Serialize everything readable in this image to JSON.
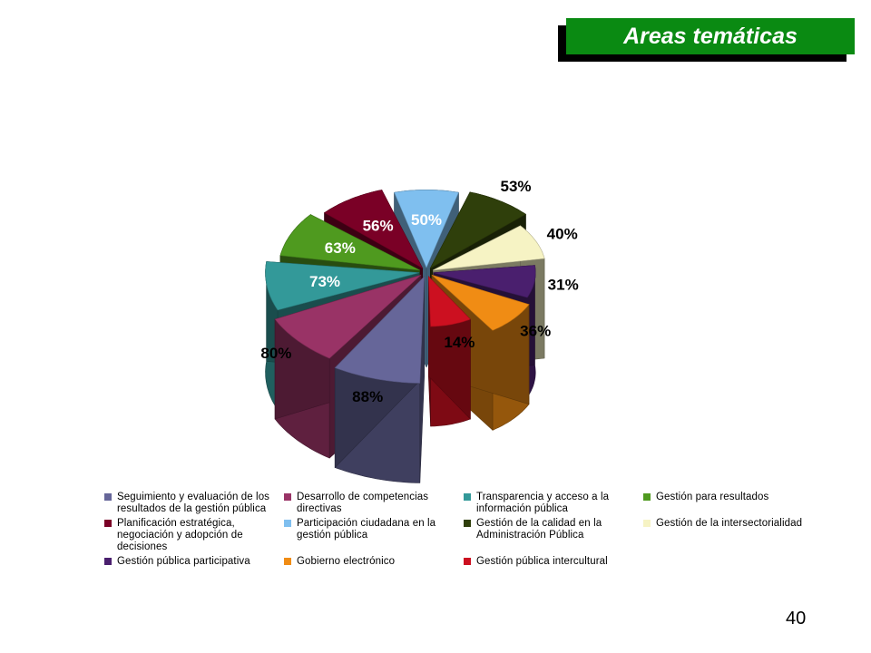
{
  "header": {
    "title": "Areas temáticas"
  },
  "page_number": "40",
  "chart_data": {
    "type": "pie",
    "exploded_3d": true,
    "slices": [
      {
        "label": "Seguimiento y evaluación de los resultados de la gestión pública",
        "value": 88,
        "display": "88%",
        "color": "#666699"
      },
      {
        "label": "Desarrollo de competencias directivas",
        "value": 80,
        "display": "80%",
        "color": "#993366"
      },
      {
        "label": "Transparencia y acceso a la información pública",
        "value": 73,
        "display": "73%",
        "color": "#339999"
      },
      {
        "label": "Gestión para resultados",
        "value": 63,
        "display": "63%",
        "color": "#4f9a1f"
      },
      {
        "label": "Planificación estratégica, negociación y adopción de decisiones",
        "value": 56,
        "display": "56%",
        "color": "#7a0026"
      },
      {
        "label": "Participación ciudadana en la gestión pública",
        "value": 50,
        "display": "50%",
        "color": "#7fbfef"
      },
      {
        "label": "Gestión de la calidad en la Administración Pública",
        "value": 53,
        "display": "53%",
        "color": "#2f3f0b"
      },
      {
        "label": "Gestión de la intersectorialidad",
        "value": 40,
        "display": "40%",
        "color": "#f6f3c4"
      },
      {
        "label": "Gestión pública participativa",
        "value": 31,
        "display": "31%",
        "color": "#4a1f6e"
      },
      {
        "label": "Gobierno electrónico",
        "value": 36,
        "display": "36%",
        "color": "#f08c14"
      },
      {
        "label": "Gestión pública intercultural",
        "value": 14,
        "display": "14%",
        "color": "#cc1020"
      }
    ],
    "legend": {
      "placement": "bottom",
      "items": [
        {
          "text": "Seguimiento y evaluación de los resultados de la gestión pública",
          "color": "#666699"
        },
        {
          "text": "Desarrollo de competencias directivas",
          "color": "#993366"
        },
        {
          "text": "Transparencia y acceso a la información pública",
          "color": "#339999"
        },
        {
          "text": "Gestión para resultados",
          "color": "#4f9a1f"
        },
        {
          "text": "Planificación estratégica, negociación y adopción de decisiones",
          "color": "#7a0026"
        },
        {
          "text": "Participación ciudadana en la gestión pública",
          "color": "#7fbfef"
        },
        {
          "text": "Gestión de la calidad en la Administración Pública",
          "color": "#2f3f0b"
        },
        {
          "text": "Gestión de la intersectorialidad",
          "color": "#f6f3c4"
        },
        {
          "text": "Gestión pública participativa",
          "color": "#4a1f6e"
        },
        {
          "text": "Gobierno electrónico",
          "color": "#f08c14"
        },
        {
          "text": "Gestión pública intercultural",
          "color": "#cc1020"
        }
      ]
    }
  }
}
